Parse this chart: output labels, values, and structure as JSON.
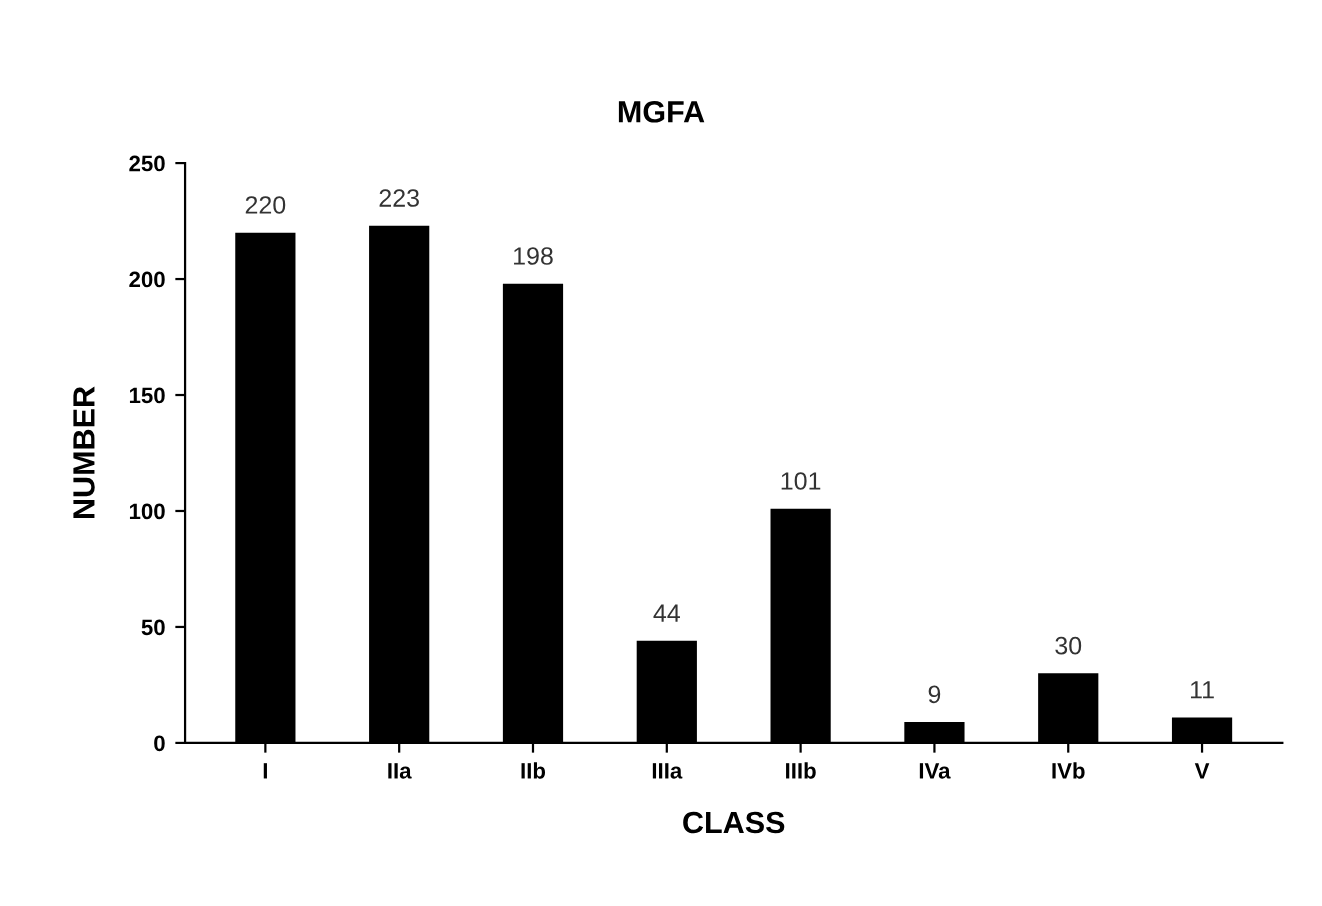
{
  "chart_data": {
    "type": "bar",
    "title": "MGFA",
    "xlabel": "CLASS",
    "ylabel": "NUMBER",
    "categories": [
      "I",
      "IIa",
      "IIb",
      "IIIa",
      "IIIb",
      "IVa",
      "IVb",
      "V"
    ],
    "values": [
      220,
      223,
      198,
      44,
      101,
      9,
      30,
      11
    ],
    "color": "#000000",
    "ylim": [
      0,
      250
    ],
    "yticks": [
      0,
      50,
      100,
      150,
      200,
      250
    ],
    "data_labels": true,
    "grid": false,
    "legend": false
  }
}
